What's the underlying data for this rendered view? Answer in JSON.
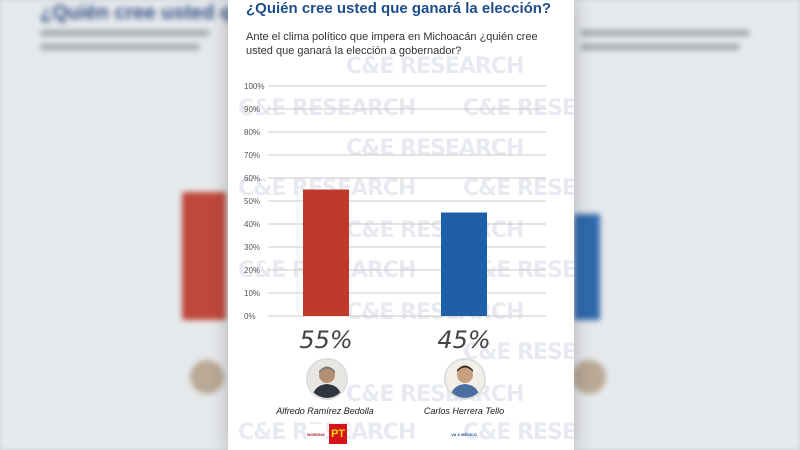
{
  "header": {
    "title": "¿Quién cree usted que ganará la elección?",
    "subtitle": "Ante el clima político que impera en Michoacán ¿quién cree usted que ganará la elección a gobernador?"
  },
  "watermark": "C&E RESEARCH",
  "chart_data": {
    "type": "bar",
    "categories": [
      "Alfredo Ramírez Bedolla",
      "Carlos Herrera Tello"
    ],
    "values": [
      55,
      45
    ],
    "value_labels": [
      "55%",
      "45%"
    ],
    "colors": [
      "#c0392b",
      "#1f5fa8"
    ],
    "ylim": [
      0,
      100
    ],
    "yticks": [
      "0%",
      "10%",
      "20%",
      "30%",
      "40%",
      "50%",
      "60%",
      "70%",
      "80%",
      "90%",
      "100%"
    ],
    "grid": true
  },
  "candidates": [
    {
      "name": "Alfredo Ramírez Bedolla",
      "party_logos": [
        "MORENA",
        "PT"
      ]
    },
    {
      "name": "Carlos Herrera Tello",
      "party_logos": [
        "VA X MÉXICO"
      ]
    }
  ],
  "colors": {
    "title": "#1f4d8a",
    "grid": "#c9c9c9",
    "background": "#ffffff"
  }
}
